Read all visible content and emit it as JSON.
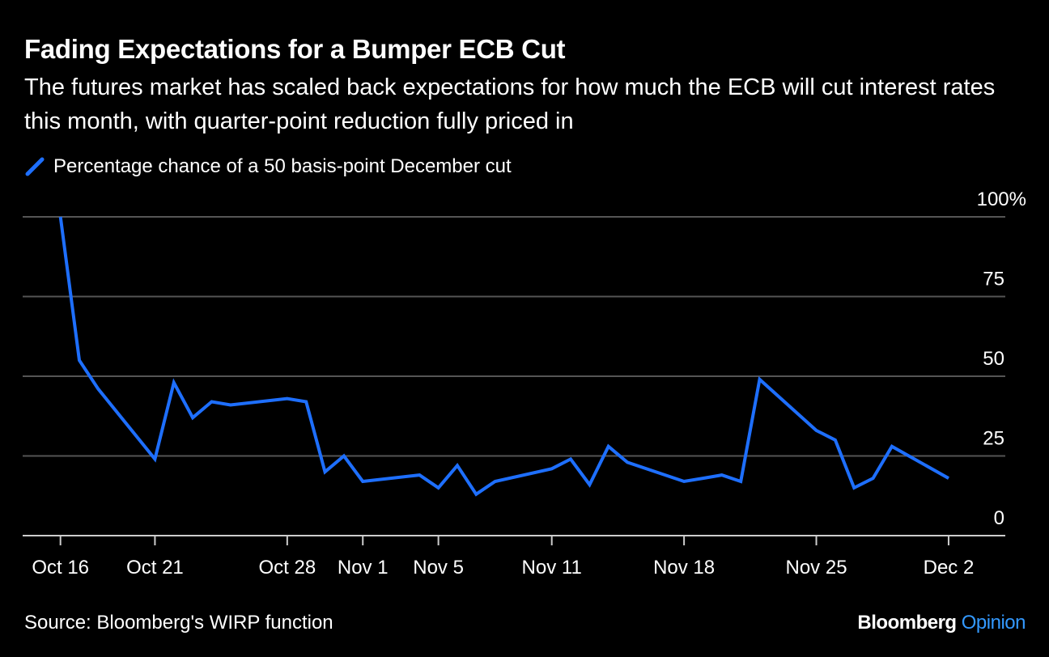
{
  "title": "Fading Expectations for a Bumper ECB Cut",
  "subtitle": "The futures market has scaled back expectations for how much the ECB will cut interest rates this month, with quarter-point reduction fully priced in",
  "source": "Source: Bloomberg's WIRP function",
  "brand": {
    "name": "Bloomberg",
    "section": "Opinion"
  },
  "colors": {
    "line": "#1e6fff",
    "grid": "#555555",
    "axis": "#cccccc"
  },
  "chart_data": {
    "type": "line",
    "title": "Fading Expectations for a Bumper ECB Cut",
    "xlabel": "",
    "ylabel": "",
    "ylim": [
      0,
      100
    ],
    "y_ticks": [
      {
        "value": 0,
        "label": "0"
      },
      {
        "value": 25,
        "label": "25"
      },
      {
        "value": 50,
        "label": "50"
      },
      {
        "value": 75,
        "label": "75"
      },
      {
        "value": 100,
        "label": "100%"
      }
    ],
    "x_ticks": [
      {
        "date": "2024-10-16",
        "label": "Oct 16"
      },
      {
        "date": "2024-10-21",
        "label": "Oct 21"
      },
      {
        "date": "2024-10-28",
        "label": "Oct 28"
      },
      {
        "date": "2024-11-01",
        "label": "Nov 1"
      },
      {
        "date": "2024-11-05",
        "label": "Nov 5"
      },
      {
        "date": "2024-11-11",
        "label": "Nov 11"
      },
      {
        "date": "2024-11-18",
        "label": "Nov 18"
      },
      {
        "date": "2024-11-25",
        "label": "Nov 25"
      },
      {
        "date": "2024-12-02",
        "label": "Dec 2"
      }
    ],
    "xlim": [
      "2024-10-14",
      "2024-12-05"
    ],
    "grid": true,
    "legend_position": "top-left",
    "series": [
      {
        "name": "Percentage chance of a 50 basis-point December cut",
        "color": "#1e6fff",
        "points": [
          {
            "x": "2024-10-16",
            "y": 100
          },
          {
            "x": "2024-10-17",
            "y": 55
          },
          {
            "x": "2024-10-18",
            "y": 46
          },
          {
            "x": "2024-10-21",
            "y": 24
          },
          {
            "x": "2024-10-22",
            "y": 48
          },
          {
            "x": "2024-10-23",
            "y": 37
          },
          {
            "x": "2024-10-24",
            "y": 42
          },
          {
            "x": "2024-10-25",
            "y": 41
          },
          {
            "x": "2024-10-28",
            "y": 43
          },
          {
            "x": "2024-10-29",
            "y": 42
          },
          {
            "x": "2024-10-30",
            "y": 20
          },
          {
            "x": "2024-10-31",
            "y": 25
          },
          {
            "x": "2024-11-01",
            "y": 17
          },
          {
            "x": "2024-11-04",
            "y": 19
          },
          {
            "x": "2024-11-05",
            "y": 15
          },
          {
            "x": "2024-11-06",
            "y": 22
          },
          {
            "x": "2024-11-07",
            "y": 13
          },
          {
            "x": "2024-11-08",
            "y": 17
          },
          {
            "x": "2024-11-11",
            "y": 21
          },
          {
            "x": "2024-11-12",
            "y": 24
          },
          {
            "x": "2024-11-13",
            "y": 16
          },
          {
            "x": "2024-11-14",
            "y": 28
          },
          {
            "x": "2024-11-15",
            "y": 23
          },
          {
            "x": "2024-11-18",
            "y": 17
          },
          {
            "x": "2024-11-19",
            "y": 18
          },
          {
            "x": "2024-11-20",
            "y": 19
          },
          {
            "x": "2024-11-21",
            "y": 17
          },
          {
            "x": "2024-11-22",
            "y": 49
          },
          {
            "x": "2024-11-25",
            "y": 33
          },
          {
            "x": "2024-11-26",
            "y": 30
          },
          {
            "x": "2024-11-27",
            "y": 15
          },
          {
            "x": "2024-11-28",
            "y": 18
          },
          {
            "x": "2024-11-29",
            "y": 28
          },
          {
            "x": "2024-12-02",
            "y": 18
          }
        ]
      }
    ]
  }
}
